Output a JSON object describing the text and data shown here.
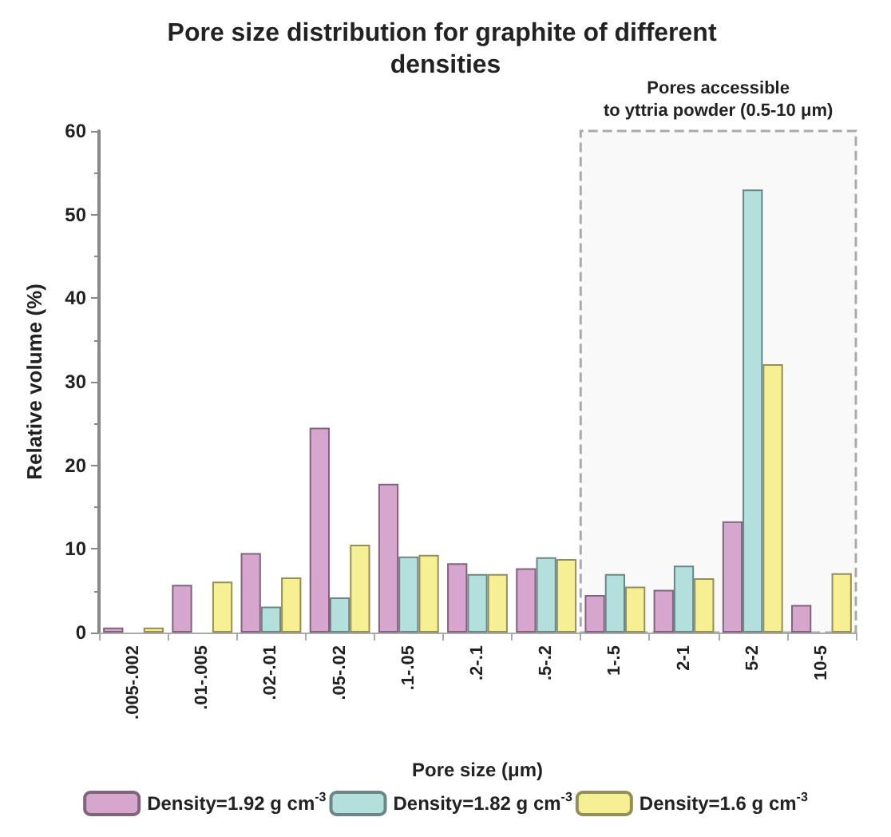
{
  "chart_data": {
    "type": "bar",
    "title": "Pore size distribution for graphite of different densities",
    "xlabel": "Pore size (μm)",
    "ylabel": "Relative volume (%)",
    "categories": [
      ".005-.002",
      ".01-.005",
      ".02-.01",
      ".05-.02",
      ".1-.05",
      ".2-.1",
      ".5-.2",
      "1-.5",
      "2-1",
      "5-2",
      "10-5"
    ],
    "series": [
      {
        "name": "Density=1.92 g cm$^{-3}$",
        "color": "#d7a6cf",
        "values": [
          0.6,
          5.7,
          9.5,
          24.5,
          17.8,
          8.3,
          7.7,
          4.5,
          5.1,
          13.3,
          3.3
        ]
      },
      {
        "name": "Density=1.82 g cm$^{-3}$",
        "color": "#b3e0dc",
        "values": [
          null,
          null,
          3.1,
          4.2,
          9.1,
          7.0,
          9.0,
          7.0,
          8.0,
          53.0,
          null
        ]
      },
      {
        "name": "Density=1.6 g cm$^{-3}$",
        "color": "#f7ef93",
        "values": [
          0.6,
          6.1,
          6.6,
          10.5,
          9.3,
          7.0,
          8.8,
          5.5,
          6.5,
          32.1,
          7.1
        ]
      }
    ],
    "ylim": [
      0,
      60
    ],
    "yticks": [
      0,
      10,
      20,
      30,
      40,
      50,
      60
    ],
    "grid": false,
    "legend": "bottom",
    "bands": [
      {
        "axis": "x",
        "from": "1-.5",
        "to": "10-5",
        "label": "Pores accessible\nto yttria powder (0.5-10 μm)"
      }
    ]
  }
}
